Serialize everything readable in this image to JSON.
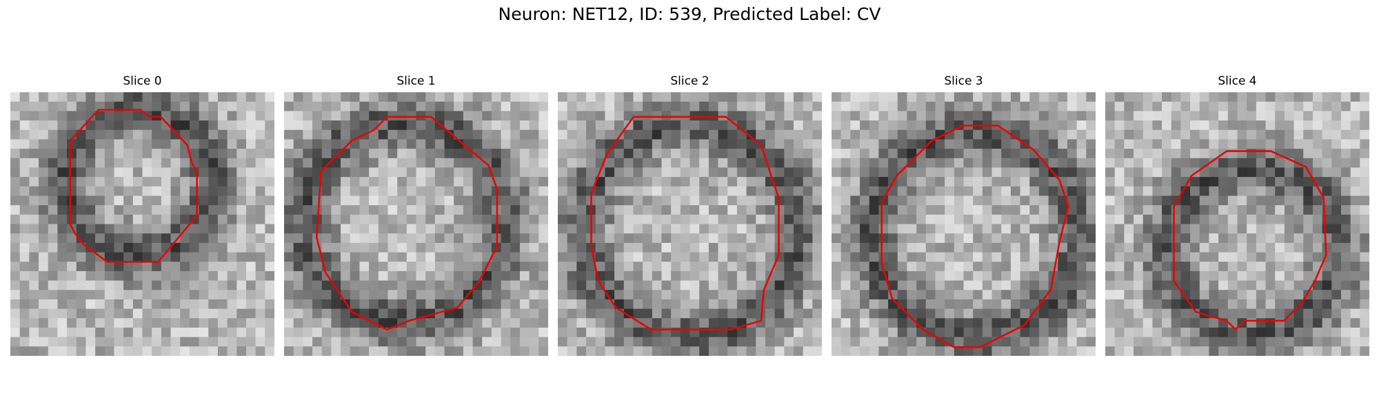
{
  "title": "Neuron: NET12, ID: 539, Predicted Label: CV",
  "panels": [
    {
      "title": "Slice 0"
    },
    {
      "title": "Slice 1"
    },
    {
      "title": "Slice 2"
    },
    {
      "title": "Slice 3"
    },
    {
      "title": "Slice 4"
    }
  ]
}
